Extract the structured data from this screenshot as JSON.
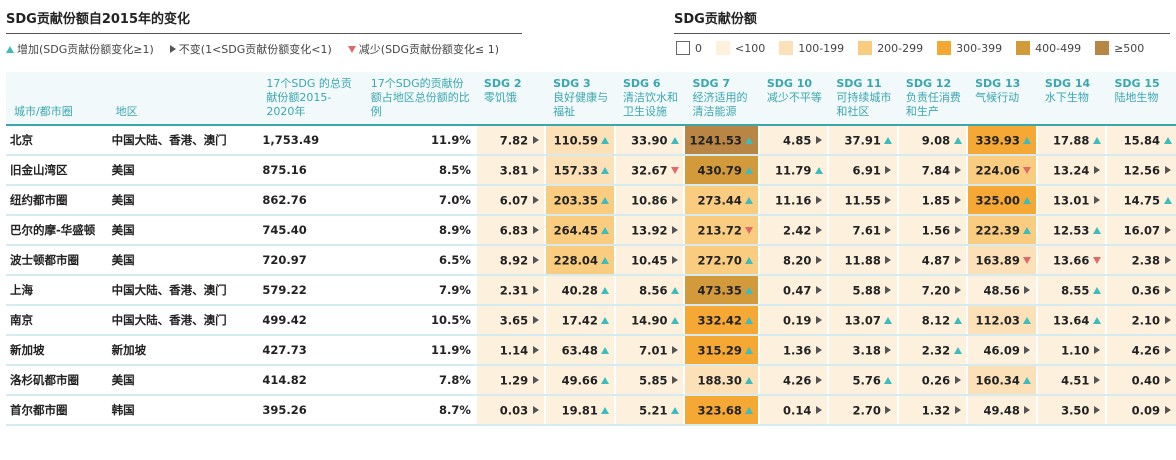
{
  "titles": {
    "left": "SDG贡献份额自2015年的变化",
    "right": "SDG贡献份额"
  },
  "legend_change": [
    {
      "symbol": "up",
      "label": "增加(SDG贡献份额变化≥1)"
    },
    {
      "symbol": "flat",
      "label": "不变(1<SDG贡献份额变化<1)"
    },
    {
      "symbol": "down",
      "label": "减少(SDG贡献份额变化≤ 1)"
    }
  ],
  "legend_color": [
    {
      "label": "0",
      "color": "#ffffff",
      "border": "#666666"
    },
    {
      "label": "<100",
      "color": "#fdf1dd",
      "border": "#fdf1dd"
    },
    {
      "label": "100-199",
      "color": "#fbe0b8",
      "border": "#fbe0b8"
    },
    {
      "label": "200-299",
      "color": "#f9cc80",
      "border": "#f9cc80"
    },
    {
      "label": "300-399",
      "color": "#f5a833",
      "border": "#f5a833"
    },
    {
      "label": "400-499",
      "color": "#d39a3c",
      "border": "#d39a3c"
    },
    {
      "label": "≥500",
      "color": "#b98544",
      "border": "#b98544"
    }
  ],
  "change_symbols": {
    "up": "#3cbcbc",
    "flat": "#555555",
    "down": "#e06a6a"
  },
  "headers": {
    "city": "城市/都市圈",
    "region": "地区",
    "total": "17个SDG 的总贡献份额2015-2020年",
    "ratio": "17个SDG的贡献份额占地区总份额的比例",
    "sdgs": [
      {
        "no": "SDG 2",
        "name": "零饥饿"
      },
      {
        "no": "SDG 3",
        "name": "良好健康与福祉"
      },
      {
        "no": "SDG 6",
        "name": "清洁饮水和卫生设施"
      },
      {
        "no": "SDG 7",
        "name": "经济适用的清洁能源"
      },
      {
        "no": "SDG 10",
        "name": "减少不平等"
      },
      {
        "no": "SDG 11",
        "name": "可持续城市和社区"
      },
      {
        "no": "SDG 12",
        "name": "负责任消费和生产"
      },
      {
        "no": "SDG 13",
        "name": "气候行动"
      },
      {
        "no": "SDG 14",
        "name": "水下生物"
      },
      {
        "no": "SDG 15",
        "name": "陆地生物"
      }
    ]
  },
  "chart_data": {
    "type": "table",
    "title": "SDG贡献份额自2015年的变化",
    "columns": [
      "城市/都市圈",
      "地区",
      "17个SDG 的总贡献份额2015-2020年",
      "17个SDG的贡献份额占地区总份额的比例",
      "SDG 2",
      "SDG 3",
      "SDG 6",
      "SDG 7",
      "SDG 10",
      "SDG 11",
      "SDG 12",
      "SDG 13",
      "SDG 14",
      "SDG 15"
    ],
    "rows": [
      {
        "city": "北京",
        "region": "中国大陆、香港、澳门",
        "total": "1,753.49",
        "ratio": "11.9%",
        "values": [
          "7.82",
          "110.59",
          "33.90",
          "1241.53",
          "4.85",
          "37.91",
          "9.08",
          "339.93",
          "17.88",
          "15.84"
        ],
        "changes": [
          "flat",
          "up",
          "up",
          "up",
          "flat",
          "up",
          "up",
          "up",
          "up",
          "up"
        ]
      },
      {
        "city": "旧金山湾区",
        "region": "美国",
        "total": "875.16",
        "ratio": "8.5%",
        "values": [
          "3.81",
          "157.33",
          "32.67",
          "430.79",
          "11.79",
          "6.91",
          "7.84",
          "224.06",
          "13.24",
          "12.56"
        ],
        "changes": [
          "flat",
          "up",
          "down",
          "up",
          "up",
          "flat",
          "flat",
          "down",
          "flat",
          "flat"
        ]
      },
      {
        "city": "纽约都市圈",
        "region": "美国",
        "total": "862.76",
        "ratio": "7.0%",
        "values": [
          "6.07",
          "203.35",
          "10.86",
          "273.44",
          "11.16",
          "11.55",
          "1.85",
          "325.00",
          "13.01",
          "14.75"
        ],
        "changes": [
          "flat",
          "up",
          "flat",
          "up",
          "flat",
          "flat",
          "flat",
          "up",
          "flat",
          "up"
        ]
      },
      {
        "city": "巴尔的摩-华盛顿",
        "region": "美国",
        "total": "745.40",
        "ratio": "8.9%",
        "values": [
          "6.83",
          "264.45",
          "13.92",
          "213.72",
          "2.42",
          "7.61",
          "1.56",
          "222.39",
          "12.53",
          "16.07"
        ],
        "changes": [
          "flat",
          "up",
          "flat",
          "down",
          "flat",
          "flat",
          "flat",
          "up",
          "up",
          "flat"
        ]
      },
      {
        "city": "波士顿都市圈",
        "region": "美国",
        "total": "720.97",
        "ratio": "6.5%",
        "values": [
          "8.92",
          "228.04",
          "10.45",
          "272.70",
          "8.20",
          "11.88",
          "4.87",
          "163.89",
          "13.66",
          "2.38"
        ],
        "changes": [
          "flat",
          "up",
          "flat",
          "up",
          "flat",
          "flat",
          "flat",
          "down",
          "down",
          "flat"
        ]
      },
      {
        "city": "上海",
        "region": "中国大陆、香港、澳门",
        "total": "579.22",
        "ratio": "7.9%",
        "values": [
          "2.31",
          "40.28",
          "8.56",
          "473.35",
          "0.47",
          "5.88",
          "7.20",
          "48.56",
          "8.55",
          "0.36"
        ],
        "changes": [
          "flat",
          "up",
          "up",
          "up",
          "flat",
          "flat",
          "flat",
          "flat",
          "up",
          "flat"
        ]
      },
      {
        "city": "南京",
        "region": "中国大陆、香港、澳门",
        "total": "499.42",
        "ratio": "10.5%",
        "values": [
          "3.65",
          "17.42",
          "14.90",
          "332.42",
          "0.19",
          "13.07",
          "8.12",
          "112.03",
          "13.64",
          "2.10"
        ],
        "changes": [
          "flat",
          "up",
          "up",
          "up",
          "flat",
          "up",
          "up",
          "up",
          "up",
          "flat"
        ]
      },
      {
        "city": "新加坡",
        "region": "新加坡",
        "total": "427.73",
        "ratio": "11.9%",
        "values": [
          "1.14",
          "63.48",
          "7.01",
          "315.29",
          "1.36",
          "3.18",
          "2.32",
          "46.09",
          "1.10",
          "4.26"
        ],
        "changes": [
          "flat",
          "up",
          "flat",
          "up",
          "flat",
          "flat",
          "up",
          "flat",
          "flat",
          "flat"
        ]
      },
      {
        "city": "洛杉矶都市圈",
        "region": "美国",
        "total": "414.82",
        "ratio": "7.8%",
        "values": [
          "1.29",
          "49.66",
          "5.85",
          "188.30",
          "4.26",
          "5.76",
          "0.26",
          "160.34",
          "4.51",
          "0.40"
        ],
        "changes": [
          "flat",
          "up",
          "flat",
          "up",
          "flat",
          "up",
          "flat",
          "up",
          "flat",
          "flat"
        ]
      },
      {
        "city": "首尔都市圈",
        "region": "韩国",
        "total": "395.26",
        "ratio": "8.7%",
        "values": [
          "0.03",
          "19.81",
          "5.21",
          "323.68",
          "0.14",
          "2.70",
          "1.32",
          "49.48",
          "3.50",
          "0.09"
        ],
        "changes": [
          "flat",
          "up",
          "up",
          "up",
          "flat",
          "flat",
          "flat",
          "flat",
          "flat",
          "flat"
        ]
      }
    ]
  }
}
